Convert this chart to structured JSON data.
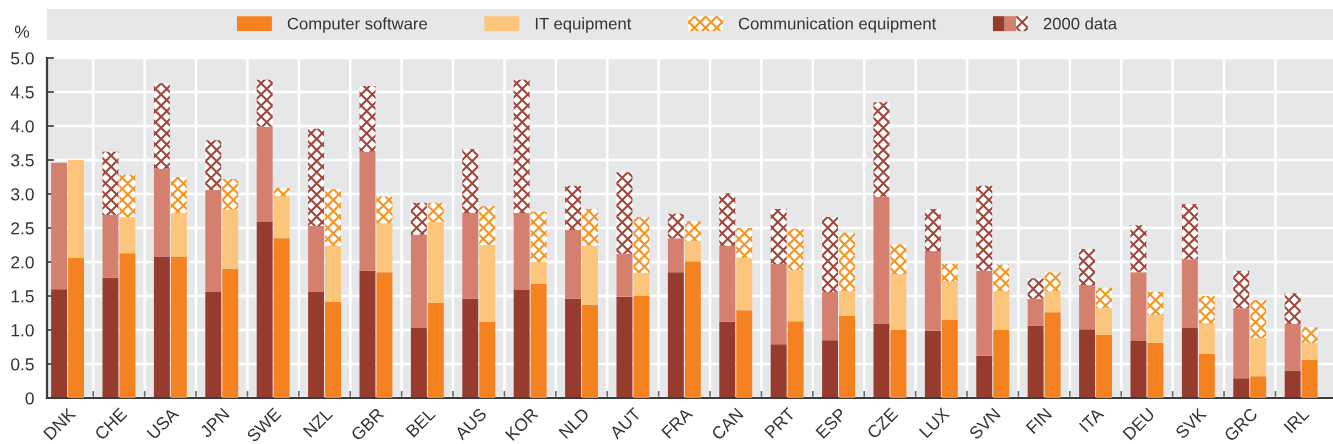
{
  "chart_data": [
    {
      "type": "bar",
      "stacked": true,
      "ylabel": "%",
      "categories": [
        "DNK",
        "CHE",
        "USA",
        "JPN",
        "SWE",
        "NZL",
        "GBR",
        "BEL",
        "AUS",
        "KOR",
        "NLD",
        "AUT",
        "FRA",
        "CAN",
        "PRT",
        "ESP",
        "CZE",
        "LUX",
        "SVN",
        "FIN",
        "ITA",
        "DEU",
        "SVK",
        "GRC",
        "IRL"
      ],
      "ylim": [
        0,
        5
      ],
      "yticks": [
        0,
        0.5,
        {
          "value": 1,
          "label": "1.0"
        },
        1.5,
        {
          "value": 2,
          "label": "2.0"
        },
        2.5,
        {
          "value": 3,
          "label": "3.0"
        },
        3.5,
        {
          "value": 4,
          "label": "4.0"
        },
        4.5,
        {
          "value": 5,
          "label": "5.0"
        }
      ],
      "grid": true,
      "legend": "top",
      "series": [
        {
          "name": "2000 data",
          "color": "#963b2d",
          "values": [
            1.6,
            1.77,
            2.08,
            1.56,
            2.59,
            1.56,
            1.87,
            1.03,
            1.46,
            1.59,
            1.46,
            1.49,
            1.85,
            1.12,
            0.79,
            0.85,
            1.09,
            0.99,
            0.62,
            1.06,
            1.01,
            0.84,
            1.03,
            0.29,
            0.4
          ]
        },
        {
          "color": "#d5806f",
          "values": [
            1.86,
            0.92,
            1.29,
            1.5,
            1.4,
            0.97,
            1.75,
            1.37,
            1.26,
            1.13,
            1.01,
            0.63,
            0.5,
            1.12,
            1.18,
            0.71,
            1.87,
            1.17,
            1.25,
            0.4,
            0.65,
            1.01,
            1.01,
            1.03,
            0.69
          ]
        },
        {
          "color": "#a0463a",
          "values": [
            null,
            0.93,
            1.26,
            0.73,
            0.69,
            1.43,
            0.97,
            0.47,
            0.94,
            1.96,
            0.65,
            1.2,
            0.36,
            0.77,
            0.81,
            1.1,
            1.39,
            0.62,
            1.25,
            0.3,
            0.53,
            0.69,
            0.81,
            0.55,
            0.45
          ]
        }
      ]
    },
    {
      "type": "bar",
      "stacked": true,
      "categories": [
        "DNK",
        "CHE",
        "USA",
        "JPN",
        "SWE",
        "NZL",
        "GBR",
        "BEL",
        "AUS",
        "KOR",
        "NLD",
        "AUT",
        "FRA",
        "CAN",
        "PRT",
        "ESP",
        "CZE",
        "LUX",
        "SVN",
        "FIN",
        "ITA",
        "DEU",
        "SVK",
        "GRC",
        "IRL"
      ],
      "ylim": [
        0,
        5
      ],
      "tick_labels": false,
      "legend": "top",
      "series": [
        {
          "name": "Computer software",
          "color": "#f58220",
          "values": [
            2.06,
            2.13,
            2.08,
            1.9,
            2.35,
            1.41,
            1.85,
            1.4,
            1.12,
            1.68,
            1.37,
            1.5,
            2.01,
            1.29,
            1.13,
            1.21,
            1.0,
            1.15,
            1.0,
            1.26,
            0.93,
            0.81,
            0.65,
            0.32,
            0.56
          ]
        },
        {
          "name": "IT equipment",
          "color": "#fbc57c",
          "values": [
            1.44,
            0.53,
            0.64,
            0.87,
            0.62,
            0.83,
            0.72,
            1.19,
            1.13,
            0.32,
            0.87,
            0.34,
            0.3,
            0.77,
            0.75,
            0.36,
            0.82,
            0.57,
            0.57,
            0.31,
            0.39,
            0.41,
            0.45,
            0.56,
            0.25
          ]
        },
        {
          "name": "Communication equipment",
          "color": "#f7941d",
          "values": [
            null,
            0.62,
            0.53,
            0.45,
            0.12,
            0.83,
            0.39,
            0.28,
            0.57,
            0.74,
            0.54,
            0.82,
            0.29,
            0.44,
            0.61,
            0.86,
            0.44,
            0.25,
            0.39,
            0.28,
            0.3,
            0.34,
            0.4,
            0.56,
            0.23
          ]
        }
      ]
    }
  ]
}
